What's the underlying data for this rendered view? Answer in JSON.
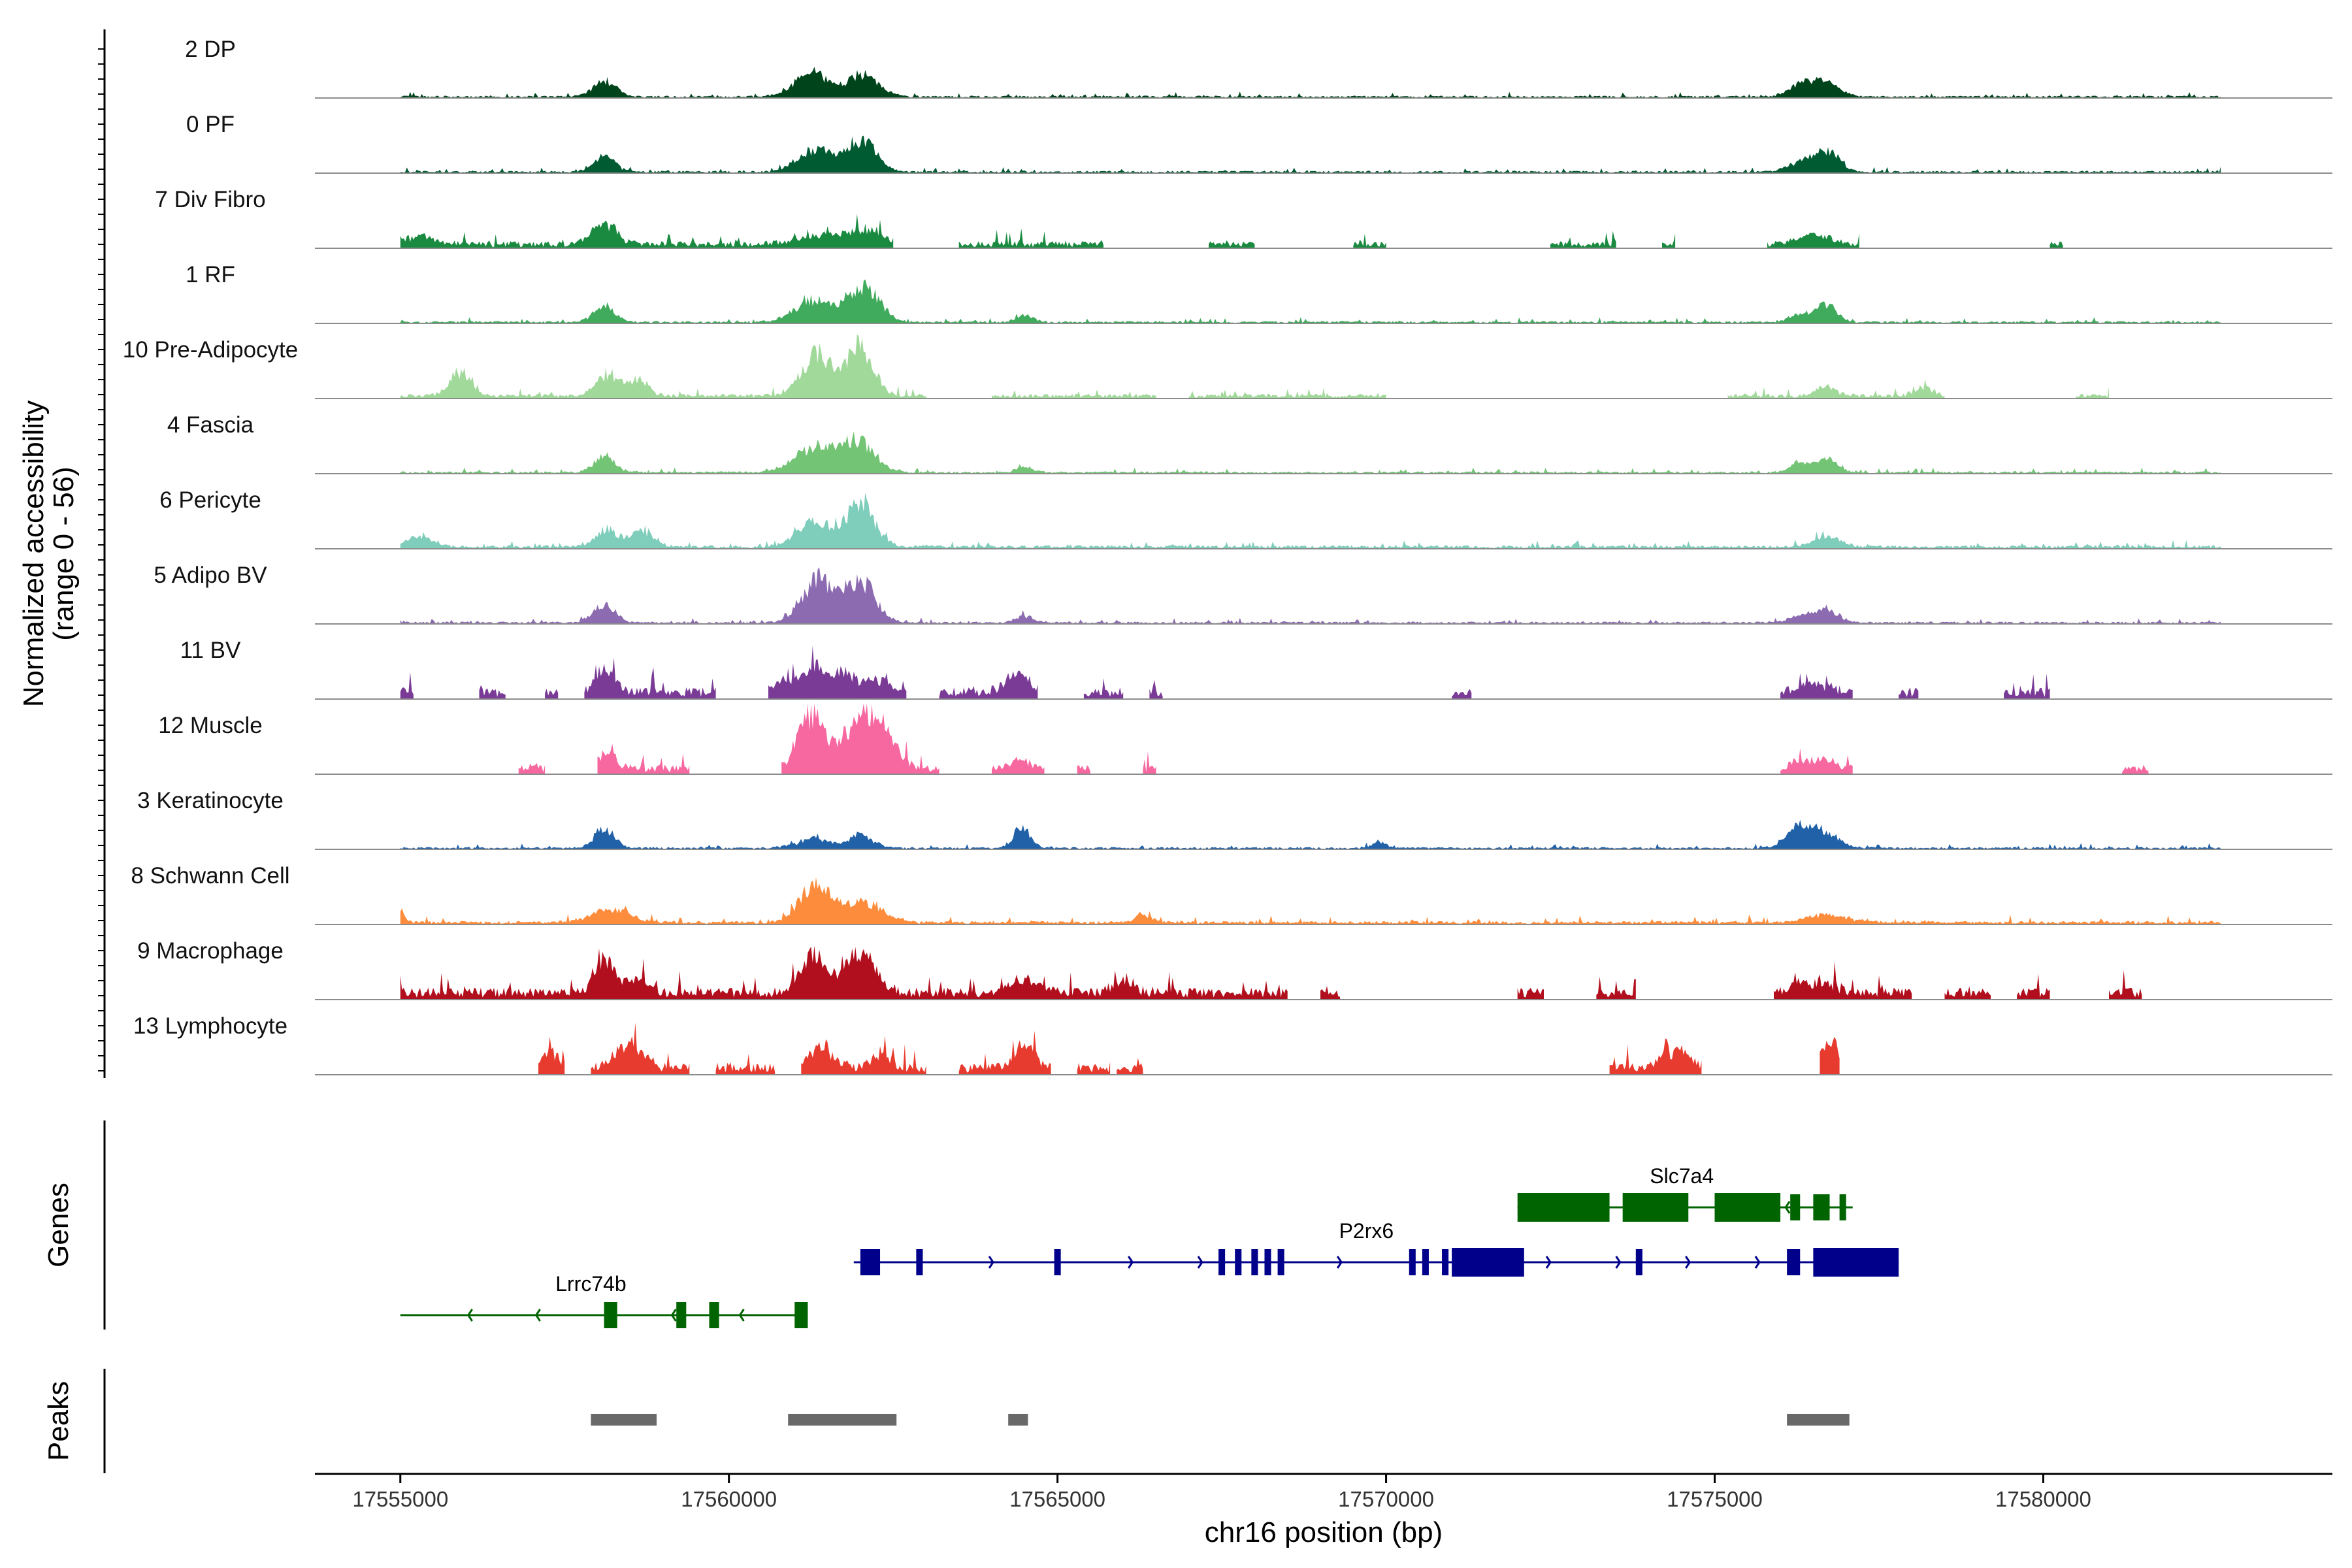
{
  "chart_data": {
    "type": "genome_coverage",
    "chromosome": "chr16",
    "region": [
      17553700,
      17584400
    ],
    "xlabel": "chr16 position (bp)",
    "xticks": [
      17555000,
      17560000,
      17565000,
      17570000,
      17575000,
      17580000
    ],
    "ylabel_line1": "Normalized accessibility",
    "ylabel_line2": "(range 0 - 56)",
    "ylim": [
      0,
      56
    ],
    "tracks": [
      {
        "name": "2 DP",
        "color": "#00441b",
        "peaks": [
          [
            17558100,
            0.22,
            180
          ],
          [
            17561250,
            0.36,
            260
          ],
          [
            17562050,
            0.34,
            230
          ],
          [
            17576650,
            0.22,
            220
          ],
          [
            17576300,
            0.15,
            200
          ]
        ],
        "islands": [
          [
            17555000,
            17582700
          ]
        ],
        "base": 0.02
      },
      {
        "name": "0 PF",
        "color": "#005a32",
        "peaks": [
          [
            17558100,
            0.24,
            160
          ],
          [
            17561300,
            0.33,
            260
          ],
          [
            17562000,
            0.48,
            230
          ],
          [
            17576700,
            0.34,
            180
          ],
          [
            17576300,
            0.13,
            200
          ]
        ],
        "islands": [
          [
            17555000,
            17582700
          ]
        ],
        "base": 0.02
      },
      {
        "name": "7 Div Fibro",
        "color": "#1a8a40",
        "peaks": [
          [
            17558100,
            0.33,
            180
          ],
          [
            17555300,
            0.12,
            200
          ],
          [
            17561500,
            0.12,
            400
          ],
          [
            17562100,
            0.16,
            300
          ],
          [
            17576500,
            0.13,
            260
          ]
        ],
        "islands": [
          [
            17555000,
            17562500
          ],
          [
            17563500,
            17565700
          ],
          [
            17567300,
            17568000
          ],
          [
            17569500,
            17570000
          ],
          [
            17572500,
            17573500
          ],
          [
            17574200,
            17574400
          ],
          [
            17575800,
            17577200
          ],
          [
            17580100,
            17580300
          ]
        ],
        "base": 0.06
      },
      {
        "name": "1 RF",
        "color": "#41ab5d",
        "peaks": [
          [
            17558100,
            0.24,
            160
          ],
          [
            17561300,
            0.34,
            280
          ],
          [
            17562050,
            0.56,
            230
          ],
          [
            17564500,
            0.12,
            120
          ],
          [
            17576700,
            0.26,
            150
          ],
          [
            17576300,
            0.14,
            150
          ]
        ],
        "islands": [
          [
            17555000,
            17582700
          ]
        ],
        "base": 0.02
      },
      {
        "name": "10 Pre-Adipocyte",
        "color": "#a1d99b",
        "peaks": [
          [
            17555900,
            0.36,
            150
          ],
          [
            17558150,
            0.34,
            160
          ],
          [
            17558600,
            0.25,
            160
          ],
          [
            17561350,
            0.62,
            240
          ],
          [
            17562000,
            0.78,
            190
          ],
          [
            17576700,
            0.14,
            150
          ],
          [
            17578200,
            0.12,
            150
          ]
        ],
        "islands": [
          [
            17555000,
            17563000
          ],
          [
            17564000,
            17566500
          ],
          [
            17567000,
            17570000
          ],
          [
            17575200,
            17578500
          ],
          [
            17580500,
            17581000
          ]
        ],
        "base": 0.04
      },
      {
        "name": "4 Fascia",
        "color": "#74c476",
        "peaks": [
          [
            17558100,
            0.24,
            160
          ],
          [
            17561300,
            0.36,
            300
          ],
          [
            17561950,
            0.46,
            260
          ],
          [
            17564500,
            0.08,
            120
          ],
          [
            17576700,
            0.22,
            150
          ],
          [
            17576300,
            0.15,
            150
          ]
        ],
        "islands": [
          [
            17555000,
            17582700
          ]
        ],
        "base": 0.02
      },
      {
        "name": "6 Pericyte",
        "color": "#7fcdbb",
        "peaks": [
          [
            17555300,
            0.16,
            200
          ],
          [
            17558150,
            0.25,
            180
          ],
          [
            17558700,
            0.25,
            170
          ],
          [
            17561300,
            0.38,
            260
          ],
          [
            17562000,
            0.62,
            220
          ],
          [
            17576700,
            0.15,
            200
          ]
        ],
        "islands": [
          [
            17555000,
            17582700
          ]
        ],
        "base": 0.03
      },
      {
        "name": "5 Adipo BV",
        "color": "#8c6bb1",
        "peaks": [
          [
            17558100,
            0.28,
            160
          ],
          [
            17561350,
            0.67,
            240
          ],
          [
            17562000,
            0.61,
            230
          ],
          [
            17564500,
            0.1,
            130
          ],
          [
            17576700,
            0.18,
            200
          ],
          [
            17576300,
            0.1,
            160
          ]
        ],
        "islands": [
          [
            17555000,
            17582700
          ]
        ],
        "base": 0.02
      },
      {
        "name": "11 BV",
        "color": "#7a3b96",
        "peaks": [
          [
            17558100,
            0.34,
            150
          ],
          [
            17560800,
            0.18,
            100
          ],
          [
            17561800,
            0.28,
            180
          ],
          [
            17561300,
            0.36,
            200
          ],
          [
            17562300,
            0.18,
            150
          ],
          [
            17564400,
            0.24,
            200
          ],
          [
            17576500,
            0.12,
            250
          ]
        ],
        "islands": [
          [
            17555000,
            17555200
          ],
          [
            17556200,
            17556600
          ],
          [
            17557200,
            17557400
          ],
          [
            17557800,
            17559800
          ],
          [
            17560600,
            17562700
          ],
          [
            17563200,
            17564700
          ],
          [
            17565400,
            17566000
          ],
          [
            17566400,
            17566600
          ],
          [
            17571000,
            17571300
          ],
          [
            17576000,
            17577100
          ],
          [
            17577800,
            17578100
          ],
          [
            17579400,
            17580100
          ]
        ],
        "base": 0.1
      },
      {
        "name": "12 Muscle",
        "color": "#f768a1",
        "peaks": [
          [
            17558150,
            0.24,
            150
          ],
          [
            17561250,
            0.82,
            200
          ],
          [
            17562000,
            0.78,
            260
          ],
          [
            17562400,
            0.34,
            200
          ],
          [
            17564450,
            0.12,
            150
          ],
          [
            17576300,
            0.14,
            150
          ],
          [
            17576700,
            0.14,
            150
          ]
        ],
        "islands": [
          [
            17556800,
            17557200
          ],
          [
            17558000,
            17559400
          ],
          [
            17560800,
            17563200
          ],
          [
            17564000,
            17564800
          ],
          [
            17565300,
            17565500
          ],
          [
            17566300,
            17566500
          ],
          [
            17576000,
            17577100
          ],
          [
            17581200,
            17581600
          ]
        ],
        "base": 0.08
      },
      {
        "name": "3 Keratinocyte",
        "color": "#2161a8",
        "peaks": [
          [
            17558100,
            0.3,
            150
          ],
          [
            17561300,
            0.14,
            260
          ],
          [
            17562000,
            0.2,
            180
          ],
          [
            17564450,
            0.3,
            130
          ],
          [
            17569900,
            0.1,
            100
          ],
          [
            17576300,
            0.32,
            200
          ],
          [
            17576700,
            0.2,
            200
          ]
        ],
        "islands": [
          [
            17555000,
            17582700
          ]
        ],
        "base": 0.02
      },
      {
        "name": "8 Schwann Cell",
        "color": "#fd8d3c",
        "peaks": [
          [
            17555000,
            0.18,
            60
          ],
          [
            17558200,
            0.2,
            300
          ],
          [
            17561300,
            0.56,
            220
          ],
          [
            17562000,
            0.32,
            300
          ],
          [
            17566300,
            0.14,
            120
          ],
          [
            17576700,
            0.12,
            300
          ]
        ],
        "islands": [
          [
            17555000,
            17582700
          ]
        ],
        "base": 0.03
      },
      {
        "name": "9 Macrophage",
        "color": "#b10f1d",
        "peaks": [
          [
            17558100,
            0.58,
            140
          ],
          [
            17558600,
            0.24,
            160
          ],
          [
            17561300,
            0.56,
            200
          ],
          [
            17562000,
            0.64,
            200
          ],
          [
            17564500,
            0.2,
            200
          ],
          [
            17566000,
            0.2,
            150
          ],
          [
            17576300,
            0.12,
            200
          ],
          [
            17576700,
            0.12,
            200
          ]
        ],
        "islands": [
          [
            17555000,
            17568500
          ],
          [
            17569000,
            17569300
          ],
          [
            17572000,
            17572400
          ],
          [
            17573200,
            17573800
          ],
          [
            17575900,
            17578000
          ],
          [
            17578500,
            17579200
          ],
          [
            17579600,
            17580100
          ],
          [
            17581000,
            17581500
          ]
        ],
        "base": 0.1
      },
      {
        "name": "13 Lymphocyte",
        "color": "#e83b2f",
        "peaks": [
          [
            17557300,
            0.28,
            100
          ],
          [
            17558500,
            0.4,
            200
          ],
          [
            17561400,
            0.3,
            200
          ],
          [
            17562300,
            0.2,
            150
          ],
          [
            17564500,
            0.32,
            150
          ],
          [
            17574400,
            0.26,
            200
          ],
          [
            17576750,
            0.5,
            100
          ]
        ],
        "islands": [
          [
            17557100,
            17557500
          ],
          [
            17557900,
            17559400
          ],
          [
            17559800,
            17560700
          ],
          [
            17561100,
            17563000
          ],
          [
            17563500,
            17564900
          ],
          [
            17565300,
            17565800
          ],
          [
            17565900,
            17566300
          ],
          [
            17573400,
            17574800
          ],
          [
            17576600,
            17576900
          ]
        ],
        "base": 0.1
      }
    ],
    "genes": [
      {
        "name": "Slc7a4",
        "strand": "-",
        "row": 0,
        "color": "#006400",
        "start": 17572000,
        "end": 17577100,
        "exons": [
          [
            17572000,
            17573400
          ],
          [
            17573600,
            17574600
          ],
          [
            17575000,
            17576000
          ],
          [
            17576150,
            17576300
          ],
          [
            17576500,
            17576750
          ],
          [
            17576900,
            17577000
          ]
        ]
      },
      {
        "name": "P2rx6",
        "strand": "+",
        "row": 1,
        "color": "#00008b",
        "start": 17561900,
        "end": 17577800,
        "exons": [
          [
            17562000,
            17562300
          ],
          [
            17562850,
            17562950
          ],
          [
            17564950,
            17565050
          ],
          [
            17567450,
            17567550
          ],
          [
            17567700,
            17567800
          ],
          [
            17567950,
            17568050
          ],
          [
            17568150,
            17568250
          ],
          [
            17568350,
            17568450
          ],
          [
            17570350,
            17570450
          ],
          [
            17570550,
            17570650
          ],
          [
            17570850,
            17570950
          ],
          [
            17571000,
            17572100
          ],
          [
            17573800,
            17573900
          ],
          [
            17576100,
            17576300
          ],
          [
            17576500,
            17577800
          ]
        ]
      },
      {
        "name": "Lrrc74b",
        "strand": "-",
        "row": 2,
        "color": "#006400",
        "start": 17555000,
        "end": 17561200,
        "exons": [
          [
            17558100,
            17558300
          ],
          [
            17559200,
            17559350
          ],
          [
            17559700,
            17559850
          ],
          [
            17561000,
            17561200
          ]
        ]
      }
    ],
    "peaks": [
      [
        17557900,
        17558900
      ],
      [
        17560900,
        17562550
      ],
      [
        17564250,
        17564550
      ],
      [
        17576100,
        17577050
      ]
    ],
    "track_group_labels": {
      "genes": "Genes",
      "peaks": "Peaks"
    }
  }
}
